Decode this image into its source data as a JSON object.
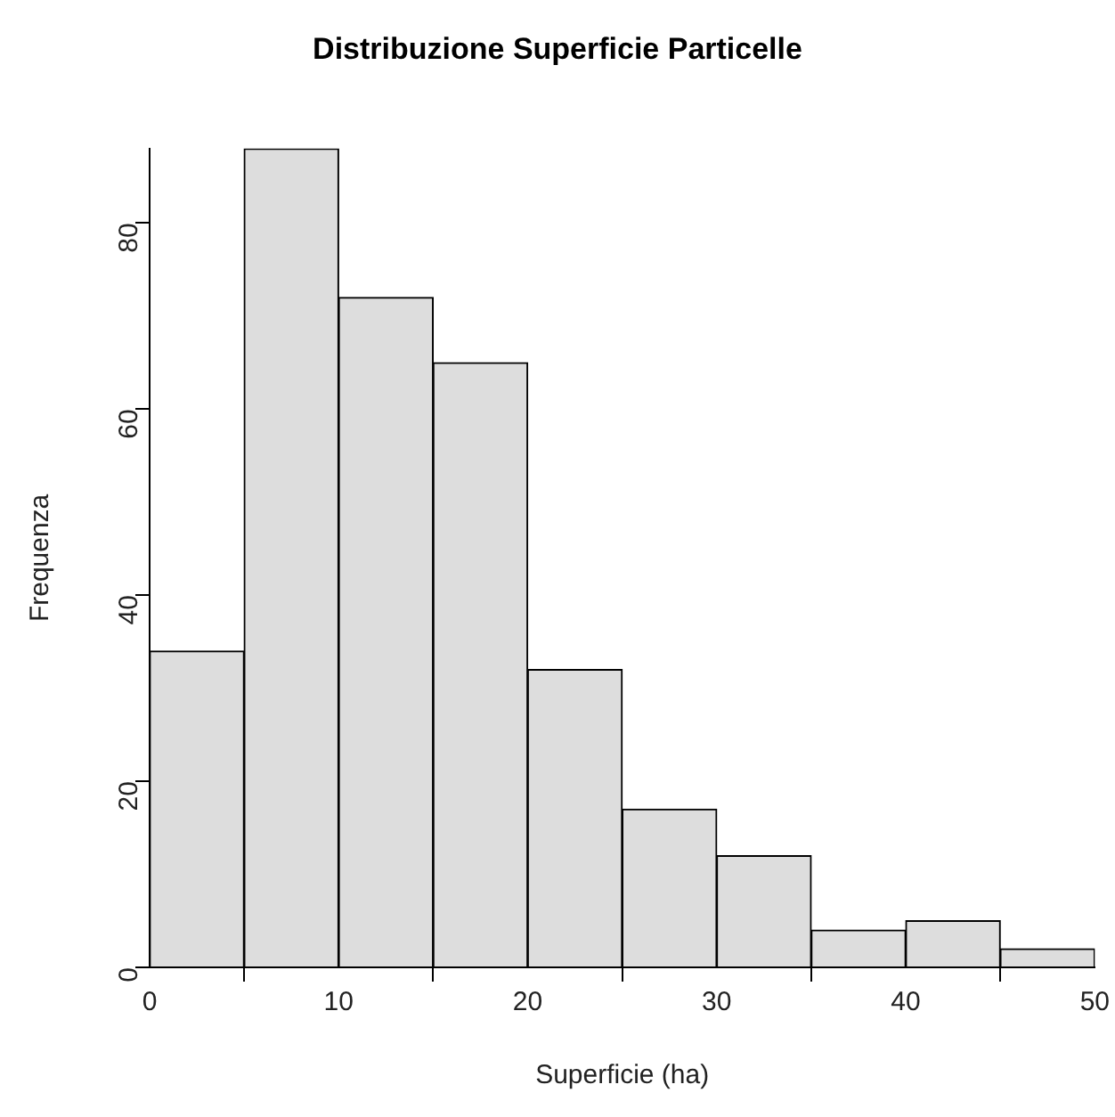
{
  "chart_data": {
    "type": "histogram",
    "title": "Distribuzione Superficie Particelle",
    "xlabel": "Superficie (ha)",
    "ylabel": "Frequenza",
    "bins": [
      0,
      5,
      10,
      15,
      20,
      25,
      30,
      35,
      40,
      45,
      50
    ],
    "values": [
      34,
      88,
      72,
      65,
      32,
      17,
      12,
      4,
      5,
      2
    ],
    "color": "#dddddd",
    "xlim": [
      0,
      50
    ],
    "xticks": [
      0,
      10,
      20,
      30,
      40,
      50
    ],
    "ylim": [
      0,
      88
    ],
    "yticks": [
      0,
      20,
      40,
      60,
      80
    ],
    "grid": false,
    "legend": false
  }
}
